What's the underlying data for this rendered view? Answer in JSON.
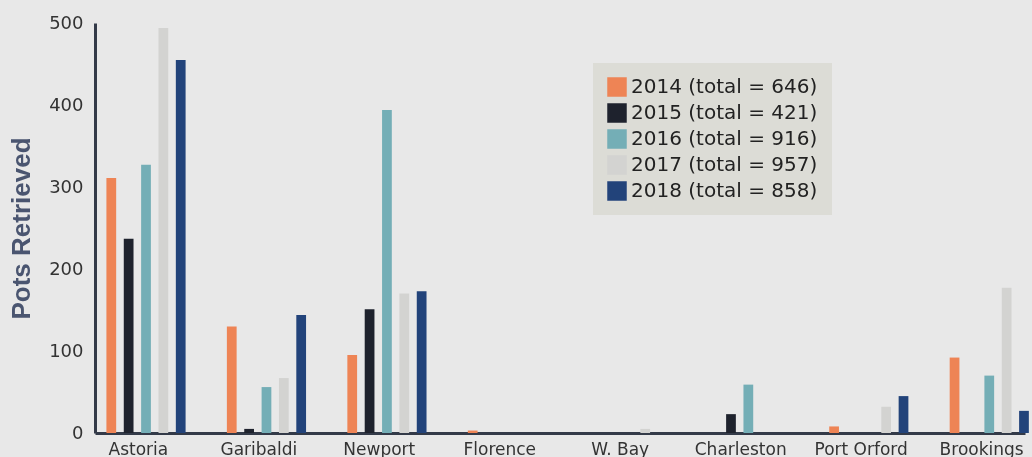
{
  "chart_data": {
    "type": "bar",
    "ylabel": "Pots Retrieved",
    "categories": [
      "Astoria",
      "Garibaldi",
      "Newport",
      "Florence",
      "W. Bay",
      "Charleston",
      "Port Orford",
      "Brookings"
    ],
    "series": [
      {
        "name": "2014 (total = 646)",
        "color": "#ee8455",
        "values": [
          311,
          130,
          95,
          3,
          0,
          0,
          8,
          92
        ]
      },
      {
        "name": "2015 (total = 421)",
        "color": "#1e222d",
        "values": [
          237,
          5,
          151,
          0,
          0,
          23,
          0,
          0
        ]
      },
      {
        "name": "2016 (total = 916)",
        "color": "#74aeb6",
        "values": [
          327,
          56,
          394,
          0,
          0,
          59,
          0,
          70
        ]
      },
      {
        "name": "2017 (total = 957)",
        "color": "#d3d3d1",
        "values": [
          494,
          67,
          170,
          0,
          5,
          0,
          32,
          177
        ]
      },
      {
        "name": "2018 (total = 858)",
        "color": "#22437a",
        "values": [
          455,
          144,
          173,
          0,
          0,
          0,
          45,
          27
        ]
      }
    ],
    "ylim": [
      0,
      500
    ],
    "yticks": [
      0,
      100,
      200,
      300,
      400,
      500
    ],
    "grid": false,
    "legend": "top right"
  }
}
